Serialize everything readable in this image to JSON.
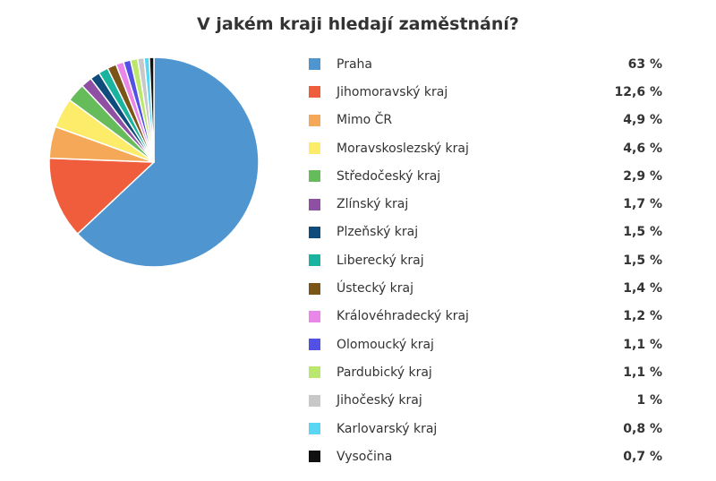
{
  "chart_data": {
    "type": "pie",
    "title": "V jakém kraji hledají zaměstnání?",
    "legend_position": "right",
    "slices": [
      {
        "label": "Praha",
        "value": 63,
        "value_label": "63 %",
        "color": "#4f95d0"
      },
      {
        "label": "Jihomoravský kraj",
        "value": 12.6,
        "value_label": "12,6 %",
        "color": "#f05d3d"
      },
      {
        "label": "Mimo ČR",
        "value": 4.9,
        "value_label": "4,9 %",
        "color": "#f5a958"
      },
      {
        "label": "Moravskoslezský kraj",
        "value": 4.6,
        "value_label": "4,6 %",
        "color": "#fcec6a"
      },
      {
        "label": "Středočeský kraj",
        "value": 2.9,
        "value_label": "2,9 %",
        "color": "#66bb5a"
      },
      {
        "label": "Zlínský kraj",
        "value": 1.7,
        "value_label": "1,7 %",
        "color": "#8f4fa3"
      },
      {
        "label": "Plzeňský kraj",
        "value": 1.5,
        "value_label": "1,5 %",
        "color": "#0f4c7c"
      },
      {
        "label": "Liberecký kraj",
        "value": 1.5,
        "value_label": "1,5 %",
        "color": "#1ab3a0"
      },
      {
        "label": "Ústecký kraj",
        "value": 1.4,
        "value_label": "1,4 %",
        "color": "#7a5517"
      },
      {
        "label": "Královéhradecký kraj",
        "value": 1.2,
        "value_label": "1,2 %",
        "color": "#ea86e7"
      },
      {
        "label": "Olomoucký kraj",
        "value": 1.1,
        "value_label": "1,1 %",
        "color": "#5350e6"
      },
      {
        "label": "Pardubický kraj",
        "value": 1.1,
        "value_label": "1,1 %",
        "color": "#b9e86c"
      },
      {
        "label": "Jihočeský kraj",
        "value": 1,
        "value_label": "1 %",
        "color": "#c8c8c8"
      },
      {
        "label": "Karlovarský kraj",
        "value": 0.8,
        "value_label": "0,8 %",
        "color": "#5ad6f5"
      },
      {
        "label": "Vysočina",
        "value": 0.7,
        "value_label": "0,7 %",
        "color": "#111111"
      }
    ]
  }
}
